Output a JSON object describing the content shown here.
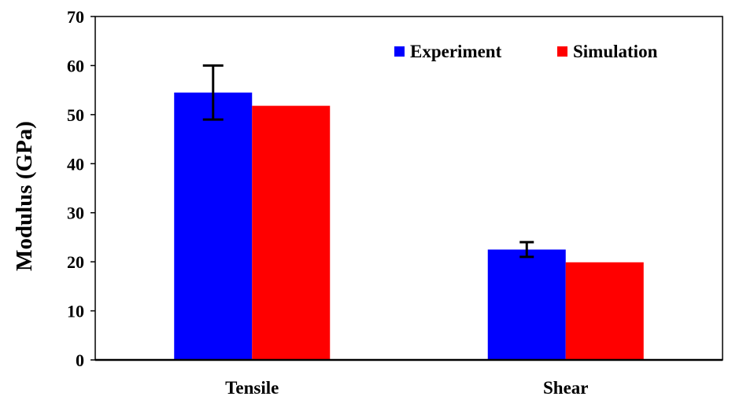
{
  "chart_data": {
    "type": "bar",
    "title": "",
    "xlabel": "",
    "ylabel": "Modulus  (GPa)",
    "categories": [
      "Tensile",
      "Shear"
    ],
    "ylim": [
      0,
      70
    ],
    "yticks": [
      0,
      10,
      20,
      30,
      40,
      50,
      60,
      70
    ],
    "grid": false,
    "legend_position": "top-right",
    "series": [
      {
        "name": "Experiment",
        "color": "#0000ff",
        "values": [
          54.5,
          22.5
        ],
        "error": [
          5.5,
          1.5
        ]
      },
      {
        "name": "Simulation",
        "color": "#ff0000",
        "values": [
          51.8,
          19.9
        ]
      }
    ]
  }
}
